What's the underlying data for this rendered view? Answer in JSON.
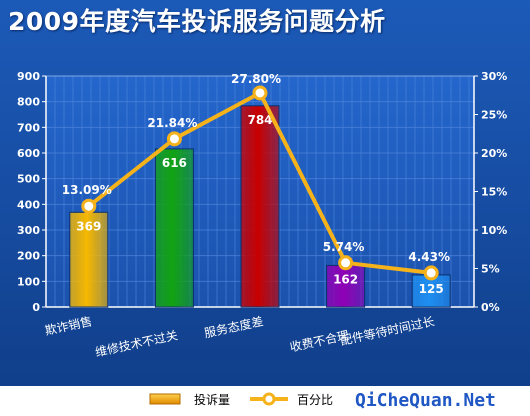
{
  "title": "2009年度汽车投诉服务问题分析",
  "watermark": "QiCheQuan.Net",
  "chart_data": {
    "type": "bar",
    "title": "2009年度汽车投诉服务问题分析",
    "categories": [
      "欺诈销售",
      "维修技术不过关",
      "服务态度差",
      "收费不合理",
      "配件等待时间过长"
    ],
    "series": [
      {
        "name": "投诉量",
        "type": "bar",
        "axis": "left",
        "values": [
          369,
          616,
          784,
          162,
          125
        ],
        "colors": [
          "#f6b800",
          "#12a312",
          "#c80000",
          "#8f00b5",
          "#1e8ef0"
        ],
        "value_labels": [
          "369",
          "616",
          "784",
          "162",
          "125"
        ]
      },
      {
        "name": "百分比",
        "type": "line",
        "axis": "right",
        "values": [
          13.09,
          21.84,
          27.8,
          5.74,
          4.43
        ],
        "color": "#f5b21a",
        "value_labels": [
          "13.09%",
          "21.84%",
          "27.80%",
          "5.74%",
          "4.43%"
        ]
      }
    ],
    "y_left": {
      "range": [
        0,
        900
      ],
      "ticks": [
        "0",
        "100",
        "200",
        "300",
        "400",
        "500",
        "600",
        "700",
        "800",
        "900"
      ]
    },
    "y_right": {
      "range": [
        0,
        30
      ],
      "ticks": [
        "0%",
        "5%",
        "10%",
        "15%",
        "20%",
        "25%",
        "30%"
      ]
    },
    "grid": true,
    "legend_position": "bottom",
    "background_color": "#1a4fa8",
    "plot_color": "#1f5fc9"
  }
}
